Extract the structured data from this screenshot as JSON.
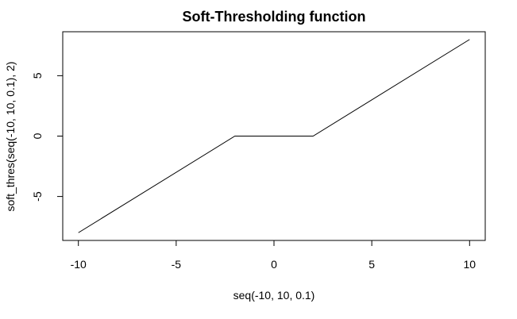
{
  "chart_data": {
    "type": "line",
    "title": "Soft-Thresholding function",
    "xlabel": "seq(-10, 10, 0.1)",
    "ylabel": "soft_thres(seq(-10, 10, 0.1), 2)",
    "xlim": [
      -10.8,
      10.8
    ],
    "ylim": [
      -8.64,
      8.64
    ],
    "xticks": [
      -10,
      -5,
      0,
      5,
      10
    ],
    "yticks": [
      -5,
      0,
      5
    ],
    "grid": false,
    "series": [
      {
        "x": [
          -10,
          -2,
          2,
          10
        ],
        "y": [
          -8,
          0,
          0,
          8
        ],
        "color": "#000000"
      }
    ]
  }
}
